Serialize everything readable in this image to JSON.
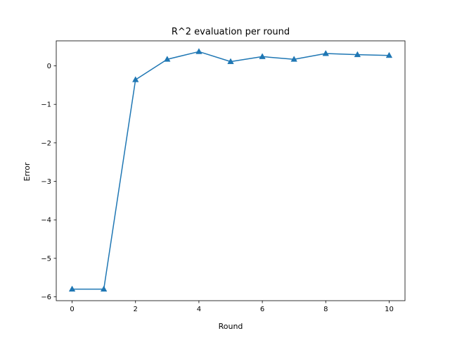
{
  "chart_data": {
    "type": "line",
    "title": "R^2 evaluation per round",
    "xlabel": "Round",
    "ylabel": "Error",
    "xlim": [
      -0.5,
      10.5
    ],
    "ylim": [
      -6.1,
      0.65
    ],
    "xticks": [
      0,
      2,
      4,
      6,
      8,
      10
    ],
    "yticks": [
      -6,
      -5,
      -4,
      -3,
      -2,
      -1,
      0
    ],
    "grid": false,
    "series": [
      {
        "color": "#1f77b4",
        "marker": "triangle-up",
        "x": [
          0,
          1,
          2,
          3,
          4,
          5,
          6,
          7,
          8,
          9,
          10
        ],
        "y": [
          -5.8,
          -5.8,
          -0.36,
          0.17,
          0.37,
          0.11,
          0.24,
          0.17,
          0.32,
          0.29,
          0.27
        ]
      }
    ]
  }
}
